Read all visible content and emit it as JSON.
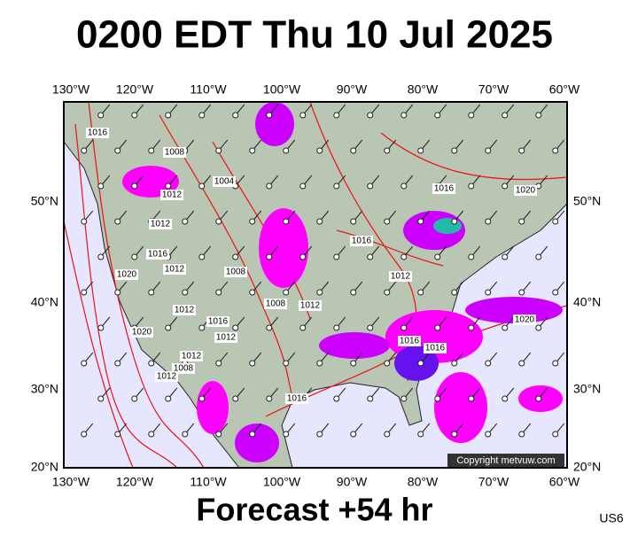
{
  "title": "0200 EDT Thu 10 Jul 2025",
  "footer": "Forecast +54 hr",
  "region": "US6",
  "copyright": "Copyright metvuw.com",
  "longitude_labels": [
    "130°W",
    "120°W",
    "110°W",
    "100°W",
    "90°W",
    "80°W",
    "70°W",
    "60°W"
  ],
  "latitude_labels": [
    "50°N",
    "40°N",
    "30°N",
    "20°N"
  ],
  "isobar_labels": [
    "1016",
    "1008",
    "1012",
    "1004",
    "1012",
    "1016",
    "1012",
    "1020",
    "1008",
    "1012",
    "1016",
    "1012",
    "1020",
    "1012",
    "1008",
    "1012",
    "1008",
    "1012",
    "1016",
    "1016",
    "1020",
    "1012",
    "1016",
    "1016",
    "1020",
    "1016"
  ]
}
